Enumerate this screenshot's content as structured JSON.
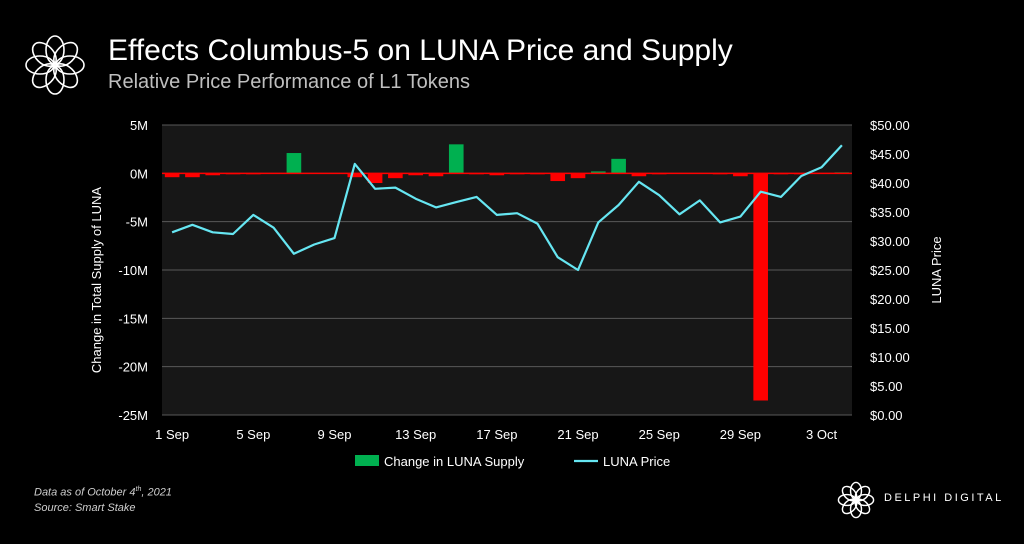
{
  "header": {
    "title": "Effects Columbus-5 on LUNA Price and Supply",
    "subtitle": "Relative Price Performance of L1 Tokens",
    "logo_icon": "flower-logo-icon"
  },
  "footer": {
    "note_prefix": "Data as of October 4",
    "note_sup": "th",
    "note_suffix": ", 2021",
    "source": "Source: Smart Stake",
    "brand": "DELPHI DIGITAL"
  },
  "colors": {
    "background": "#000000",
    "bar_positive": "#00b050",
    "bar_negative": "#ff0000",
    "line": "#66e6f2",
    "grid": "#595959",
    "plot_bg": "#171717"
  },
  "chart_data": {
    "type": "bar+line",
    "title": "Effects Columbus-5 on LUNA Price and Supply",
    "subtitle": "Relative Price Performance of L1 Tokens",
    "ylabel_left": "Change in Total Supply of LUNA",
    "ylabel_right": "LUNA Price",
    "ylim_left": [
      -25,
      5
    ],
    "ylim_right": [
      0,
      50
    ],
    "yticks_left": [
      {
        "value": 5,
        "label": "5M"
      },
      {
        "value": 0,
        "label": "0M"
      },
      {
        "value": -5,
        "label": "-5M"
      },
      {
        "value": -10,
        "label": "-10M"
      },
      {
        "value": -15,
        "label": "-15M"
      },
      {
        "value": -20,
        "label": "-20M"
      },
      {
        "value": -25,
        "label": "-25M"
      }
    ],
    "yticks_right": [
      {
        "value": 50,
        "label": "$50.00"
      },
      {
        "value": 45,
        "label": "$45.00"
      },
      {
        "value": 40,
        "label": "$40.00"
      },
      {
        "value": 35,
        "label": "$35.00"
      },
      {
        "value": 30,
        "label": "$30.00"
      },
      {
        "value": 25,
        "label": "$25.00"
      },
      {
        "value": 20,
        "label": "$20.00"
      },
      {
        "value": 15,
        "label": "$15.00"
      },
      {
        "value": 10,
        "label": "$10.00"
      },
      {
        "value": 5,
        "label": "$5.00"
      },
      {
        "value": 0,
        "label": "$0.00"
      }
    ],
    "xtick_labels": [
      {
        "index": 0,
        "label": "1 Sep"
      },
      {
        "index": 4,
        "label": "5 Sep"
      },
      {
        "index": 8,
        "label": "9 Sep"
      },
      {
        "index": 12,
        "label": "13 Sep"
      },
      {
        "index": 16,
        "label": "17 Sep"
      },
      {
        "index": 20,
        "label": "21 Sep"
      },
      {
        "index": 24,
        "label": "25 Sep"
      },
      {
        "index": 28,
        "label": "29 Sep"
      },
      {
        "index": 32,
        "label": "3 Oct"
      }
    ],
    "categories": [
      "1 Sep",
      "2 Sep",
      "3 Sep",
      "4 Sep",
      "5 Sep",
      "6 Sep",
      "7 Sep",
      "8 Sep",
      "9 Sep",
      "10 Sep",
      "11 Sep",
      "12 Sep",
      "13 Sep",
      "14 Sep",
      "15 Sep",
      "16 Sep",
      "17 Sep",
      "18 Sep",
      "19 Sep",
      "20 Sep",
      "21 Sep",
      "22 Sep",
      "23 Sep",
      "24 Sep",
      "25 Sep",
      "26 Sep",
      "27 Sep",
      "28 Sep",
      "29 Sep",
      "30 Sep",
      "1 Oct",
      "2 Oct",
      "3 Oct",
      "4 Oct"
    ],
    "series": [
      {
        "name": "Change in LUNA Supply",
        "type": "bar",
        "axis": "left",
        "unit": "M",
        "values": [
          -0.4,
          -0.4,
          -0.2,
          -0.1,
          -0.1,
          -0.05,
          2.1,
          0,
          -0.05,
          -0.4,
          -1.0,
          -0.5,
          -0.2,
          -0.3,
          3.0,
          -0.1,
          -0.2,
          -0.1,
          -0.1,
          -0.8,
          -0.5,
          0.2,
          1.5,
          -0.3,
          -0.1,
          -0.05,
          -0.05,
          -0.1,
          -0.3,
          -23.5,
          -0.1,
          -0.1,
          -0.05,
          0.1
        ]
      },
      {
        "name": "LUNA Price",
        "type": "line",
        "axis": "right",
        "unit": "$",
        "values": [
          31.5,
          32.8,
          31.5,
          31.2,
          34.5,
          32.3,
          27.8,
          29.4,
          30.5,
          43.3,
          39.0,
          39.2,
          37.3,
          35.8,
          36.7,
          37.6,
          34.5,
          34.8,
          33.0,
          27.2,
          25.0,
          33.2,
          36.2,
          40.2,
          37.9,
          34.6,
          37.0,
          33.2,
          34.2,
          38.5,
          37.6,
          41.2,
          42.7,
          46.5
        ]
      }
    ],
    "legend": [
      "Change in LUNA Supply",
      "LUNA Price"
    ],
    "legend_position": "bottom-center"
  }
}
